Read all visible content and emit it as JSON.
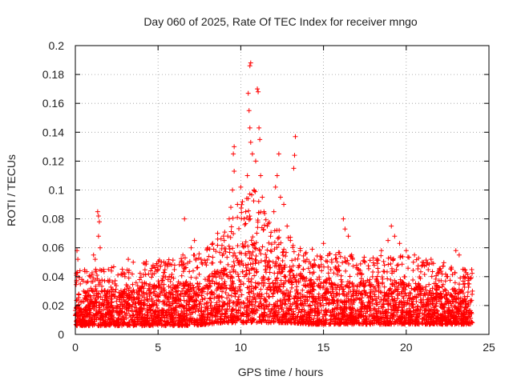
{
  "chart_data": {
    "type": "scatter",
    "title": "Day 060 of 2025, Rate Of TEC Index for receiver mngo",
    "xlabel": "GPS time / hours",
    "ylabel": "ROTI / TECUs",
    "xlim": [
      0,
      25
    ],
    "ylim": [
      0,
      0.2
    ],
    "xticks": [
      0,
      5,
      10,
      15,
      20,
      25
    ],
    "yticks": [
      0,
      0.02,
      0.04,
      0.06,
      0.08,
      0.1,
      0.12,
      0.14,
      0.16,
      0.18,
      0.2
    ],
    "xtick_labels": [
      "0",
      "5",
      "10",
      "15",
      "20",
      "25"
    ],
    "ytick_labels": [
      "0",
      "0.02",
      "0.04",
      "0.06",
      "0.08",
      "0.1",
      "0.12",
      "0.14",
      "0.16",
      "0.18",
      "0.2"
    ],
    "grid": true,
    "marker": "+",
    "color": "#ff0000",
    "series": [
      {
        "name": "ROTI",
        "points": [
          [
            0.1,
            0.058
          ],
          [
            0.15,
            0.052
          ],
          [
            0.3,
            0.035
          ],
          [
            0.5,
            0.03
          ],
          [
            0.9,
            0.04
          ],
          [
            1.1,
            0.055
          ],
          [
            1.2,
            0.052
          ],
          [
            1.35,
            0.085
          ],
          [
            1.4,
            0.082
          ],
          [
            1.45,
            0.078
          ],
          [
            1.4,
            0.068
          ],
          [
            1.5,
            0.06
          ],
          [
            1.7,
            0.045
          ],
          [
            2.0,
            0.045
          ],
          [
            2.4,
            0.035
          ],
          [
            3.0,
            0.04
          ],
          [
            3.2,
            0.052
          ],
          [
            3.5,
            0.05
          ],
          [
            4.2,
            0.035
          ],
          [
            4.7,
            0.048
          ],
          [
            5.0,
            0.045
          ],
          [
            5.2,
            0.05
          ],
          [
            5.6,
            0.038
          ],
          [
            6.0,
            0.048
          ],
          [
            6.5,
            0.055
          ],
          [
            6.6,
            0.08
          ],
          [
            7.0,
            0.06
          ],
          [
            7.2,
            0.065
          ],
          [
            7.6,
            0.052
          ],
          [
            8.0,
            0.06
          ],
          [
            8.3,
            0.063
          ],
          [
            8.6,
            0.07
          ],
          [
            9.0,
            0.065
          ],
          [
            9.3,
            0.08
          ],
          [
            9.4,
            0.088
          ],
          [
            9.5,
            0.1
          ],
          [
            9.6,
            0.113
          ],
          [
            9.55,
            0.125
          ],
          [
            9.6,
            0.13
          ],
          [
            9.8,
            0.09
          ],
          [
            10.0,
            0.102
          ],
          [
            10.1,
            0.092
          ],
          [
            10.2,
            0.08
          ],
          [
            10.3,
            0.085
          ],
          [
            10.4,
            0.11
          ],
          [
            10.45,
            0.167
          ],
          [
            10.5,
            0.155
          ],
          [
            10.55,
            0.186
          ],
          [
            10.6,
            0.188
          ],
          [
            10.55,
            0.143
          ],
          [
            10.6,
            0.133
          ],
          [
            10.7,
            0.125
          ],
          [
            10.8,
            0.1
          ],
          [
            10.9,
            0.12
          ],
          [
            11.0,
            0.17
          ],
          [
            11.05,
            0.168
          ],
          [
            11.1,
            0.143
          ],
          [
            11.15,
            0.135
          ],
          [
            11.2,
            0.11
          ],
          [
            11.3,
            0.095
          ],
          [
            11.4,
            0.085
          ],
          [
            11.6,
            0.075
          ],
          [
            11.8,
            0.068
          ],
          [
            12.0,
            0.085
          ],
          [
            12.1,
            0.102
          ],
          [
            12.2,
            0.11
          ],
          [
            12.3,
            0.125
          ],
          [
            12.4,
            0.095
          ],
          [
            12.6,
            0.09
          ],
          [
            12.8,
            0.075
          ],
          [
            13.0,
            0.065
          ],
          [
            13.2,
            0.115
          ],
          [
            13.25,
            0.124
          ],
          [
            13.3,
            0.137
          ],
          [
            13.5,
            0.055
          ],
          [
            14.0,
            0.052
          ],
          [
            14.5,
            0.048
          ],
          [
            15.0,
            0.063
          ],
          [
            15.5,
            0.05
          ],
          [
            15.8,
            0.045
          ],
          [
            16.2,
            0.08
          ],
          [
            16.3,
            0.073
          ],
          [
            16.5,
            0.068
          ],
          [
            16.7,
            0.055
          ],
          [
            17.0,
            0.048
          ],
          [
            17.5,
            0.05
          ],
          [
            18.0,
            0.053
          ],
          [
            18.5,
            0.058
          ],
          [
            18.9,
            0.065
          ],
          [
            19.1,
            0.075
          ],
          [
            19.3,
            0.068
          ],
          [
            19.6,
            0.063
          ],
          [
            20.0,
            0.058
          ],
          [
            20.5,
            0.055
          ],
          [
            21.0,
            0.048
          ],
          [
            21.5,
            0.052
          ],
          [
            22.0,
            0.045
          ],
          [
            22.5,
            0.04
          ],
          [
            23.0,
            0.058
          ],
          [
            23.2,
            0.055
          ],
          [
            23.5,
            0.045
          ],
          [
            23.8,
            0.035
          ],
          [
            24.0,
            0.03
          ]
        ]
      }
    ],
    "dense_envelope": {
      "note": "Dense band of + markers representing thousands of samples; per-hour [hour, lower, upper] ROTI bounds of the filled cloud",
      "bands": [
        [
          0.0,
          0.006,
          0.03
        ],
        [
          1.0,
          0.006,
          0.03
        ],
        [
          2.0,
          0.006,
          0.032
        ],
        [
          3.0,
          0.006,
          0.032
        ],
        [
          4.0,
          0.006,
          0.033
        ],
        [
          5.0,
          0.006,
          0.035
        ],
        [
          6.0,
          0.006,
          0.035
        ],
        [
          7.0,
          0.006,
          0.036
        ],
        [
          8.0,
          0.007,
          0.04
        ],
        [
          9.0,
          0.008,
          0.048
        ],
        [
          10.0,
          0.008,
          0.06
        ],
        [
          10.5,
          0.008,
          0.07
        ],
        [
          11.0,
          0.008,
          0.065
        ],
        [
          12.0,
          0.008,
          0.05
        ],
        [
          13.0,
          0.008,
          0.045
        ],
        [
          14.0,
          0.007,
          0.04
        ],
        [
          15.0,
          0.007,
          0.038
        ],
        [
          16.0,
          0.007,
          0.038
        ],
        [
          17.0,
          0.007,
          0.036
        ],
        [
          18.0,
          0.007,
          0.036
        ],
        [
          19.0,
          0.007,
          0.038
        ],
        [
          20.0,
          0.007,
          0.036
        ],
        [
          21.0,
          0.007,
          0.035
        ],
        [
          22.0,
          0.007,
          0.034
        ],
        [
          23.0,
          0.007,
          0.032
        ],
        [
          24.0,
          0.007,
          0.03
        ]
      ]
    }
  }
}
